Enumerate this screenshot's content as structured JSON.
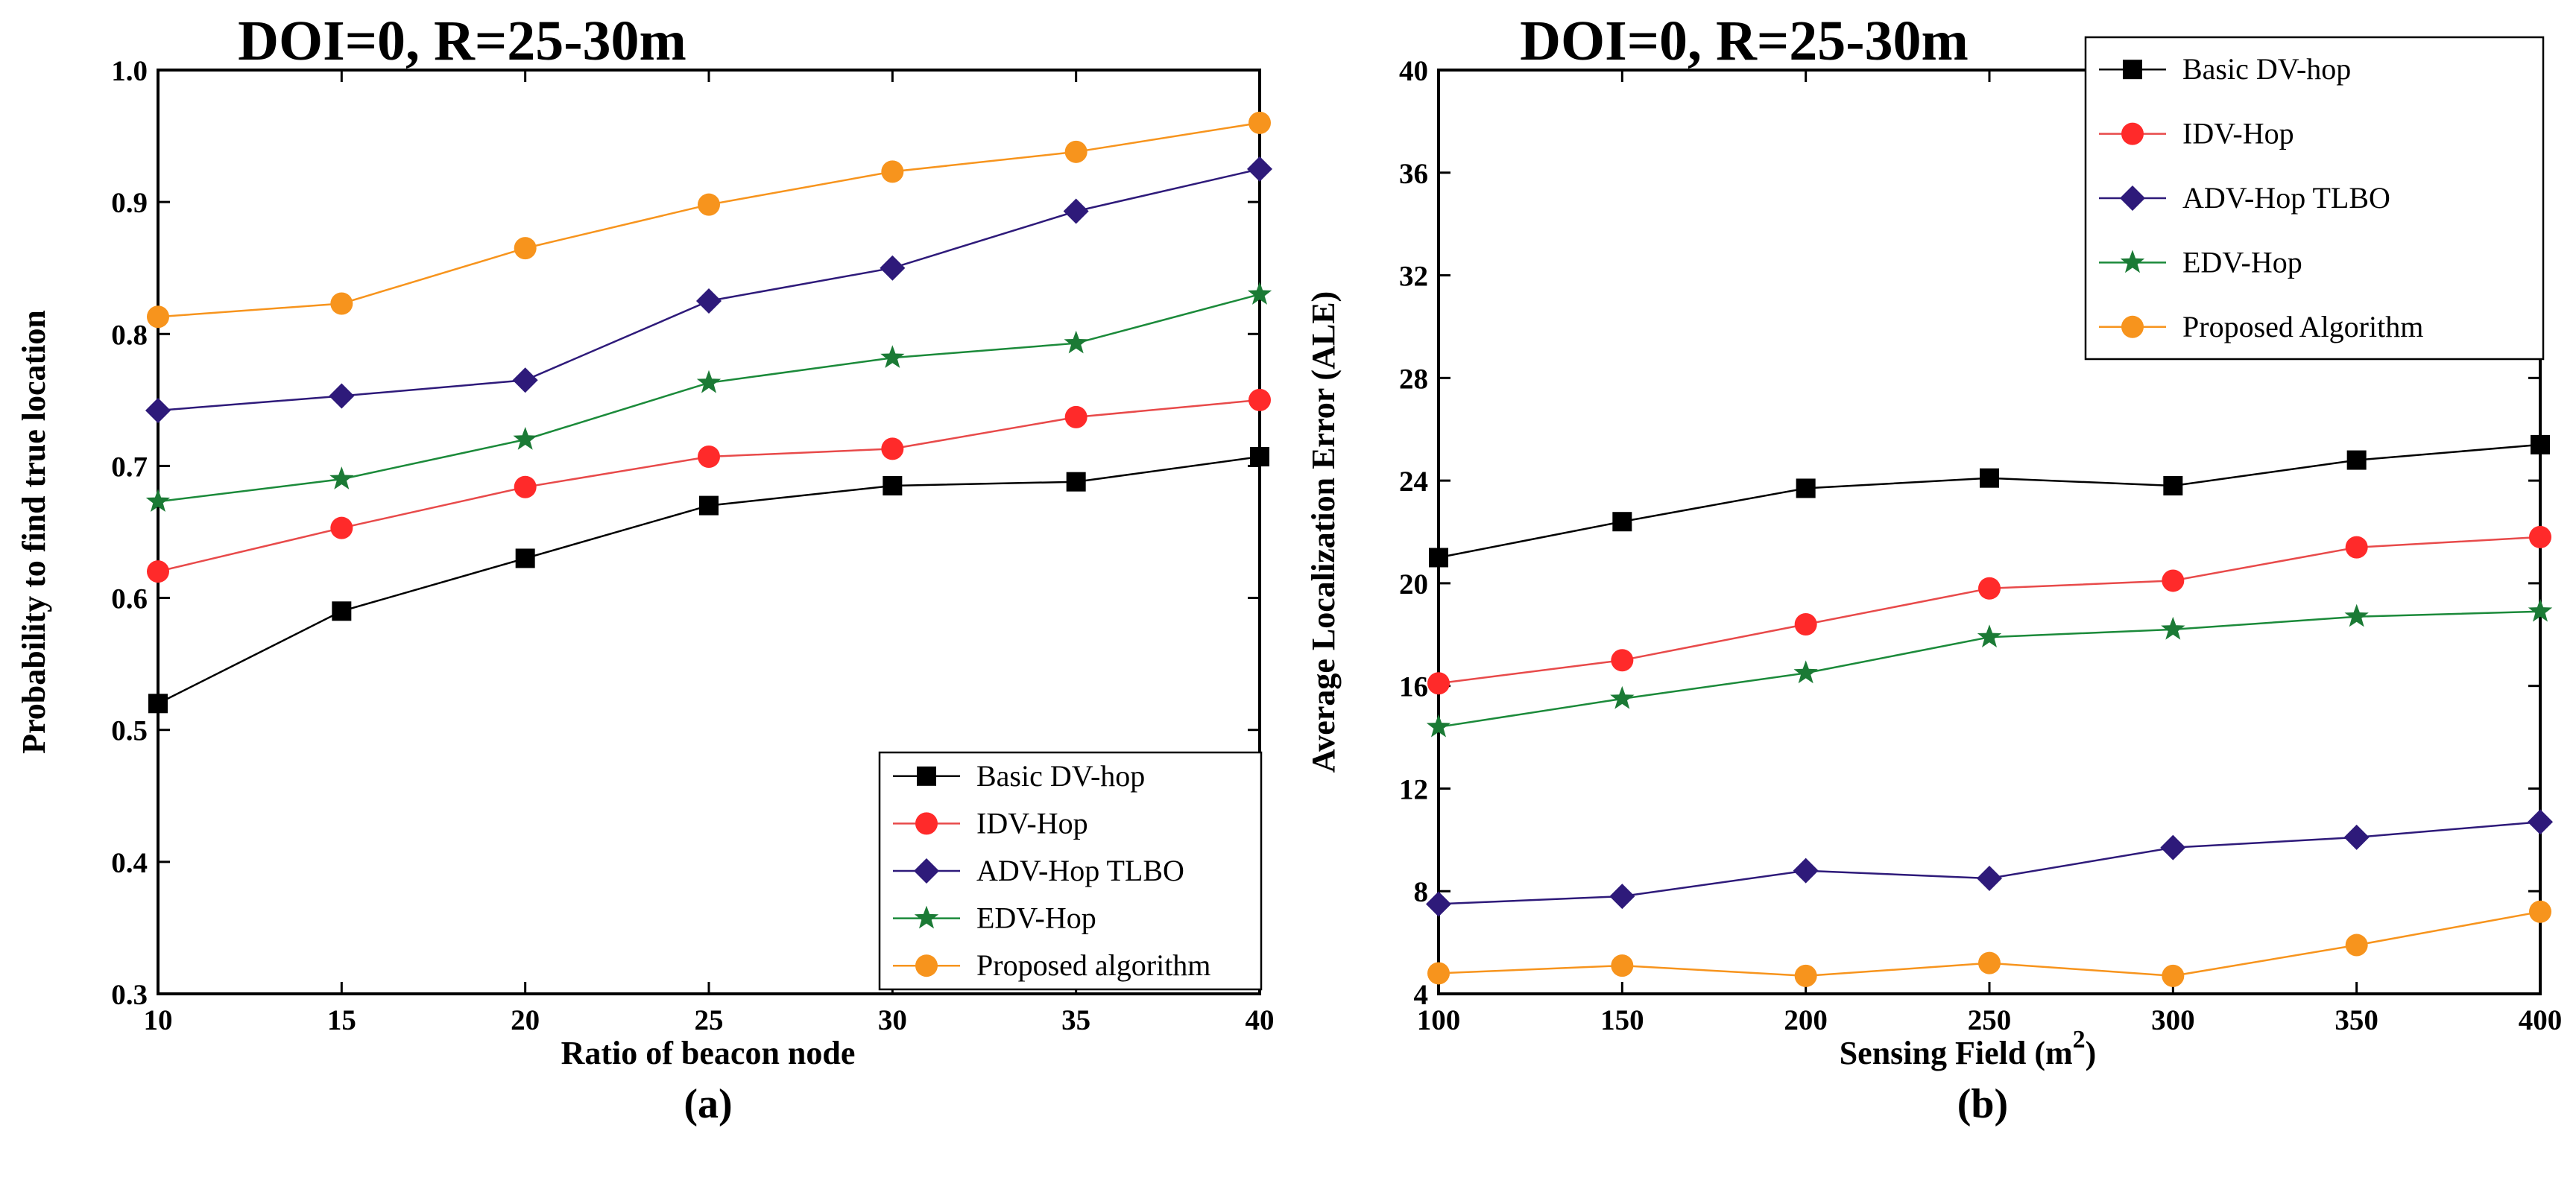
{
  "chart_data": [
    {
      "type": "line",
      "panel_label": "(a)",
      "title": "DOI=0, R=25-30m",
      "xlabel": "Ratio of beacon node",
      "ylabel": "Probability to find true location",
      "x": [
        10,
        15,
        20,
        25,
        30,
        35,
        40
      ],
      "xlim": [
        10,
        40
      ],
      "xticks": [
        "10",
        "15",
        "20",
        "25",
        "30",
        "35",
        "40"
      ],
      "ylim": [
        0.3,
        1.0
      ],
      "yticks": [
        "0.3",
        "0.4",
        "0.5",
        "0.6",
        "0.7",
        "0.8",
        "0.9",
        "1.0"
      ],
      "legend_position": "bottom-right",
      "grid": false,
      "series": [
        {
          "name": "Basic DV-hop",
          "marker": "square",
          "color": "#000000",
          "line_color": "#000000",
          "values": [
            0.52,
            0.59,
            0.63,
            0.67,
            0.685,
            0.688,
            0.707
          ]
        },
        {
          "name": "IDV-Hop",
          "marker": "circle",
          "color": "#ff2a2a",
          "line_color": "#e84a4a",
          "values": [
            0.62,
            0.653,
            0.684,
            0.707,
            0.713,
            0.737,
            0.75
          ]
        },
        {
          "name": "ADV-Hop TLBO",
          "marker": "diamond",
          "color": "#2e1a7a",
          "line_color": "#2e1a7a",
          "values": [
            0.742,
            0.753,
            0.765,
            0.825,
            0.85,
            0.893,
            0.925
          ]
        },
        {
          "name": "EDV-Hop",
          "marker": "star",
          "color": "#1b7a35",
          "line_color": "#1b8a3a",
          "values": [
            0.673,
            0.69,
            0.72,
            0.763,
            0.782,
            0.793,
            0.83
          ]
        },
        {
          "name": "Proposed algorithm",
          "marker": "circle",
          "color": "#f7941d",
          "line_color": "#f7941d",
          "values": [
            0.813,
            0.823,
            0.865,
            0.898,
            0.923,
            0.938,
            0.96
          ]
        }
      ]
    },
    {
      "type": "line",
      "panel_label": "(b)",
      "title": "DOI=0, R=25-30m",
      "xlabel": "Sensing Field (m",
      "xlabel_superscript": "2",
      "xlabel_suffix": ")",
      "ylabel": "Average Localization Error (ALE)",
      "x": [
        100,
        150,
        200,
        250,
        300,
        350,
        400
      ],
      "xlim": [
        100,
        400
      ],
      "xticks": [
        "100",
        "150",
        "200",
        "250",
        "300",
        "350",
        "400"
      ],
      "ylim": [
        4,
        40
      ],
      "yticks": [
        "4",
        "8",
        "12",
        "16",
        "20",
        "24",
        "28",
        "32",
        "36",
        "40"
      ],
      "legend_position": "top-right",
      "grid": false,
      "series": [
        {
          "name": "Basic DV-hop",
          "marker": "square",
          "color": "#000000",
          "line_color": "#000000",
          "values": [
            21.0,
            22.4,
            23.7,
            24.1,
            23.8,
            24.8,
            25.4
          ]
        },
        {
          "name": "IDV-Hop",
          "marker": "circle",
          "color": "#ff2a2a",
          "line_color": "#e84a4a",
          "values": [
            16.1,
            17.0,
            18.4,
            19.8,
            20.1,
            21.4,
            21.8
          ]
        },
        {
          "name": "ADV-Hop TLBO",
          "marker": "diamond",
          "color": "#2e1a7a",
          "line_color": "#2e1a7a",
          "values": [
            7.5,
            7.8,
            8.8,
            8.5,
            9.7,
            10.1,
            10.7
          ]
        },
        {
          "name": "EDV-Hop",
          "marker": "star",
          "color": "#1b7a35",
          "line_color": "#1b8a3a",
          "values": [
            14.4,
            15.5,
            16.5,
            17.9,
            18.2,
            18.7,
            18.9
          ]
        },
        {
          "name": "Proposed Algorithm",
          "marker": "circle",
          "color": "#f7941d",
          "line_color": "#f7941d",
          "values": [
            4.8,
            5.1,
            4.7,
            5.2,
            4.7,
            5.9,
            7.2
          ]
        }
      ]
    }
  ]
}
